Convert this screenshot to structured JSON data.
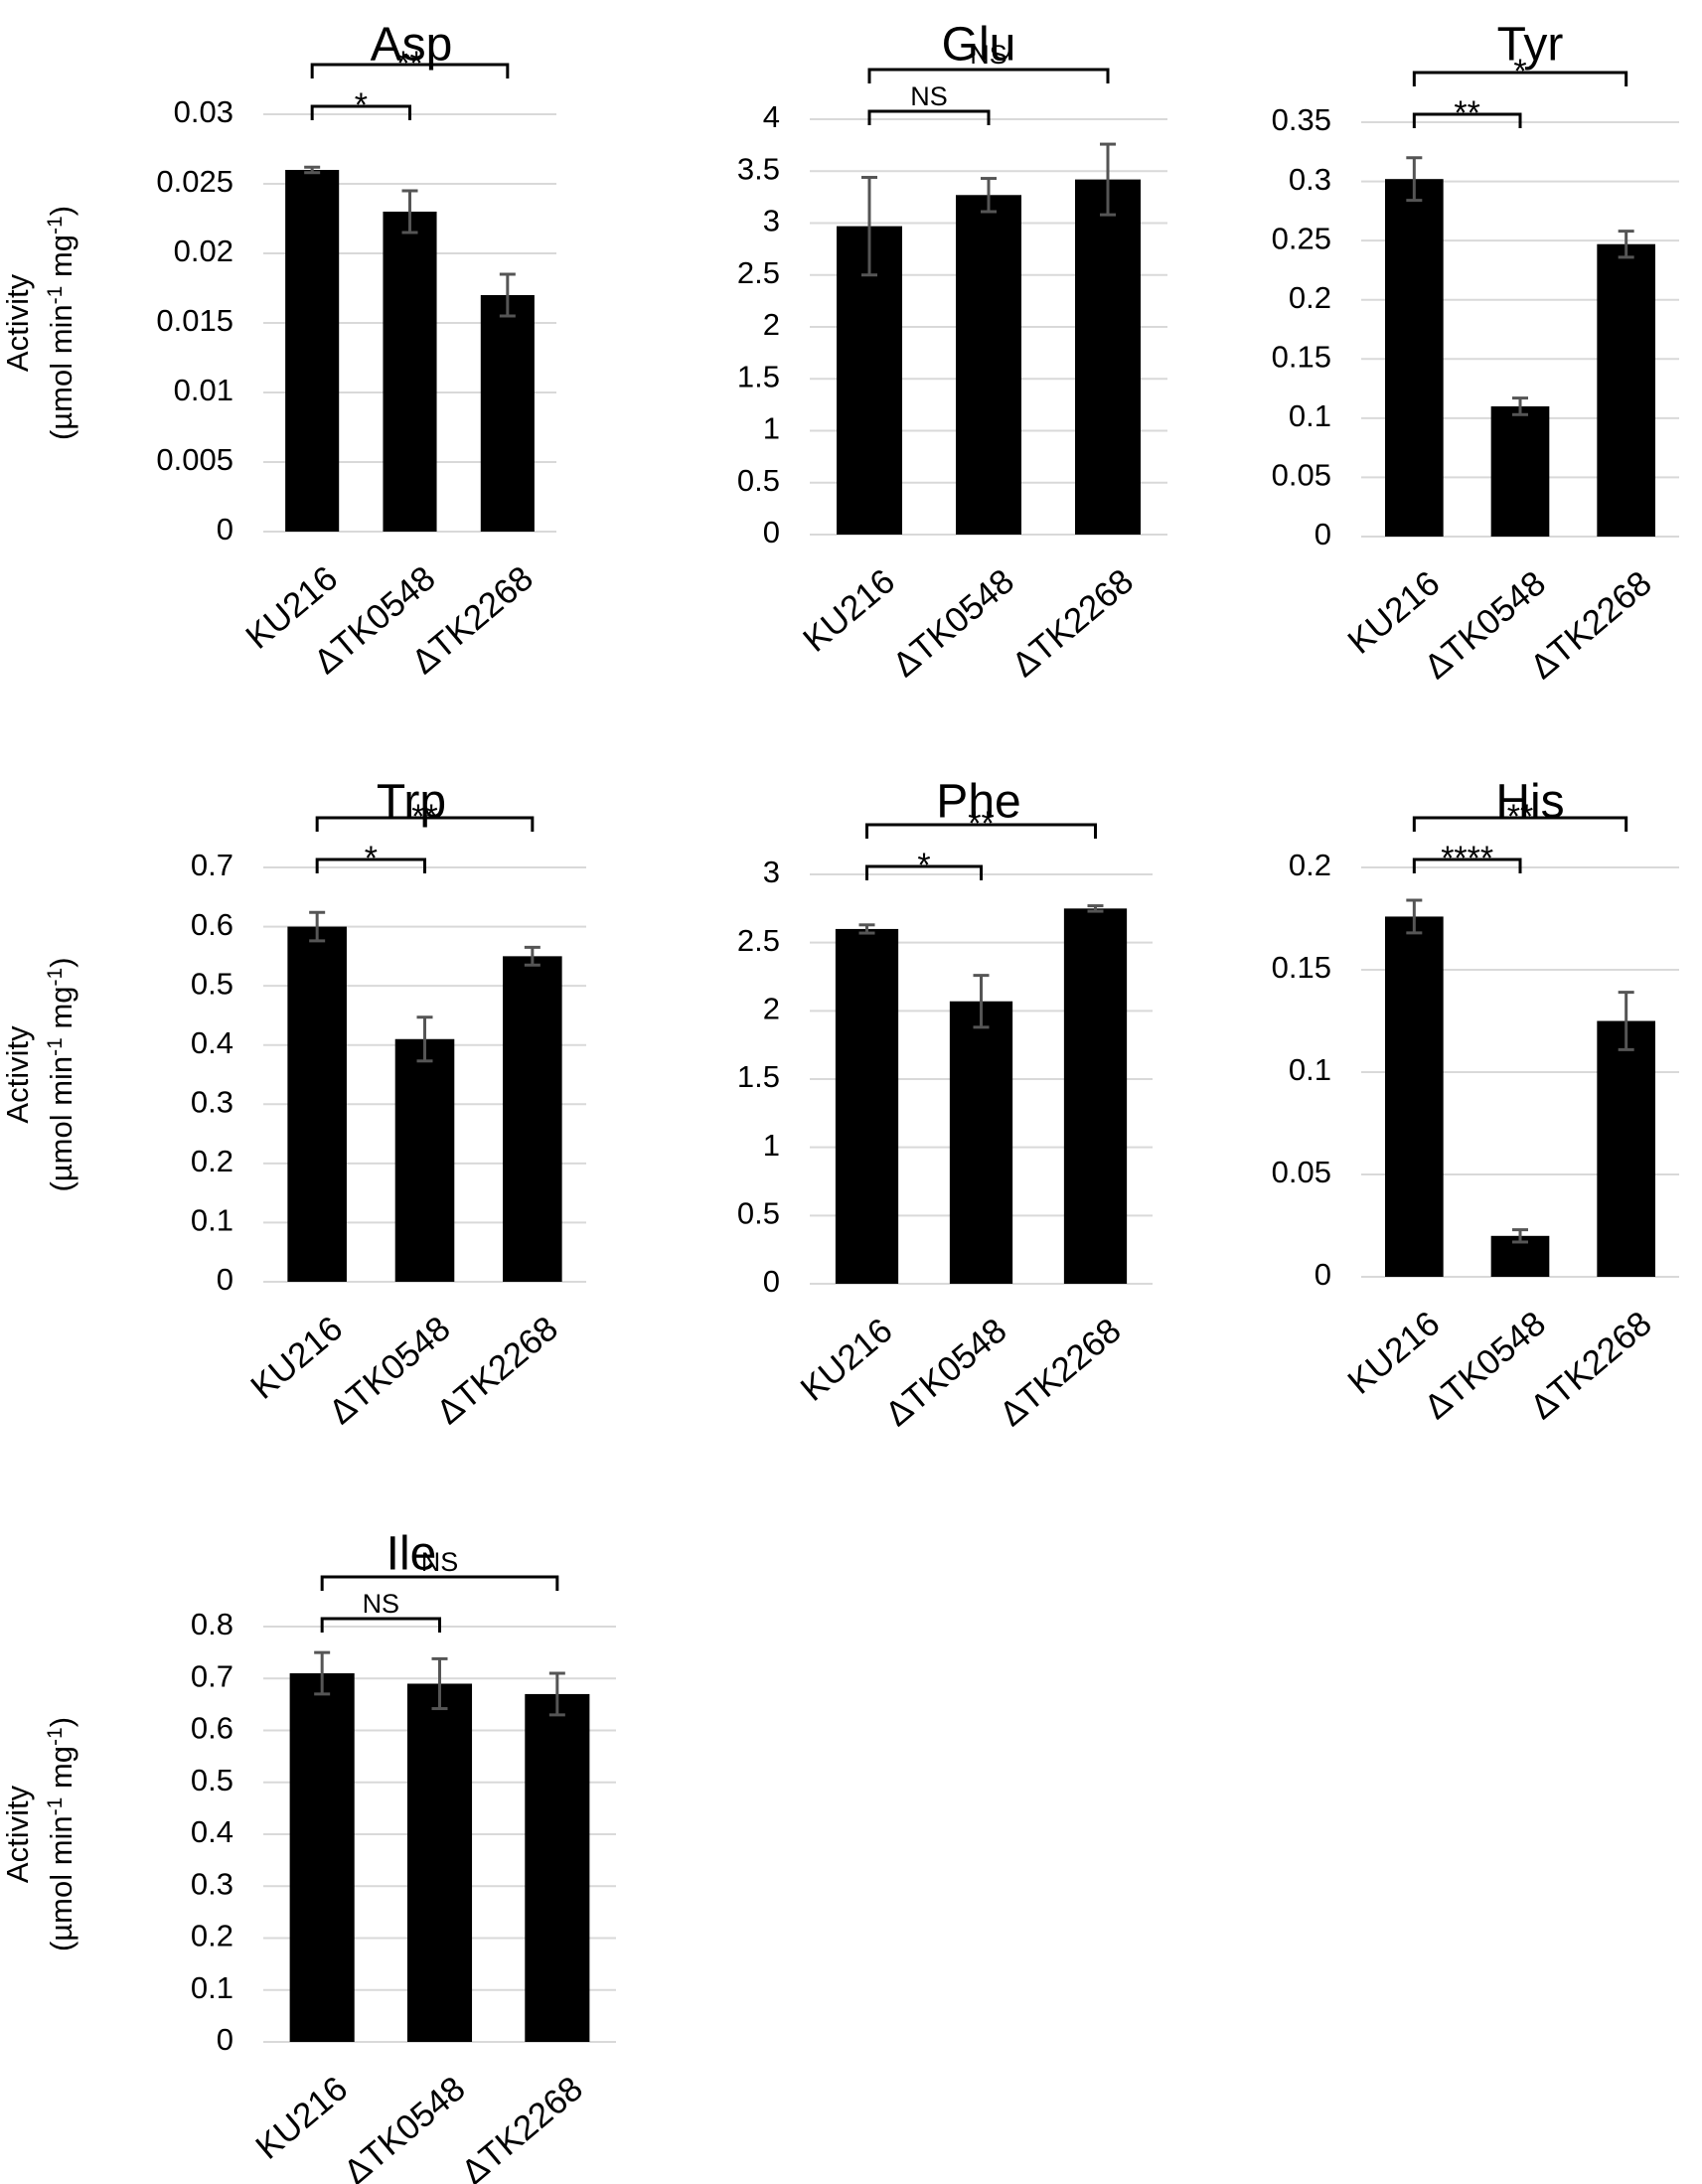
{
  "figure": {
    "ylabel_line1": "Activity",
    "ylabel_line2_prefix": "(µmol min",
    "ylabel_line2_mid": " mg",
    "ylabel_sup": "-1",
    "ylabel_close": ")"
  },
  "colors": {
    "bar": "#000000",
    "error_bar": "#555555",
    "gridline": "#d9d9d9",
    "bracket": "#000000",
    "background": "#ffffff"
  },
  "chart_data": [
    {
      "type": "bar",
      "title": "Asp",
      "categories": [
        "KU216",
        "ΔTK0548",
        "ΔTK2268"
      ],
      "values": [
        0.026,
        0.023,
        0.017
      ],
      "errors": [
        0.0002,
        0.0015,
        0.0015
      ],
      "ylim": [
        0,
        0.03
      ],
      "yticks": [
        "0",
        "0.005",
        "0.01",
        "0.015",
        "0.02",
        "0.025",
        "0.03"
      ],
      "grid": true,
      "significance": [
        {
          "from": "KU216",
          "to": "ΔTK0548",
          "label": "*"
        },
        {
          "from": "KU216",
          "to": "ΔTK2268",
          "label": "**"
        }
      ],
      "xlabel": "",
      "ylabel": "Activity (µmol min-1 mg-1)"
    },
    {
      "type": "bar",
      "title": "Glu",
      "categories": [
        "KU216",
        "ΔTK0548",
        "ΔTK2268"
      ],
      "values": [
        2.97,
        3.27,
        3.42
      ],
      "errors": [
        0.47,
        0.16,
        0.34
      ],
      "ylim": [
        0,
        4
      ],
      "yticks": [
        "0",
        "0.5",
        "1",
        "1.5",
        "2",
        "2.5",
        "3",
        "3.5",
        "4"
      ],
      "grid": true,
      "significance": [
        {
          "from": "KU216",
          "to": "ΔTK0548",
          "label": "NS"
        },
        {
          "from": "KU216",
          "to": "ΔTK2268",
          "label": "NS"
        }
      ],
      "xlabel": "",
      "ylabel": ""
    },
    {
      "type": "bar",
      "title": "Tyr",
      "categories": [
        "KU216",
        "ΔTK0548",
        "ΔTK2268"
      ],
      "values": [
        0.302,
        0.11,
        0.247
      ],
      "errors": [
        0.018,
        0.007,
        0.011
      ],
      "ylim": [
        0,
        0.35
      ],
      "yticks": [
        "0",
        "0.05",
        "0.1",
        "0.15",
        "0.2",
        "0.25",
        "0.3",
        "0.35"
      ],
      "grid": true,
      "significance": [
        {
          "from": "KU216",
          "to": "ΔTK0548",
          "label": "**"
        },
        {
          "from": "KU216",
          "to": "ΔTK2268",
          "label": "*"
        }
      ],
      "xlabel": "",
      "ylabel": ""
    },
    {
      "type": "bar",
      "title": "Trp",
      "categories": [
        "KU216",
        "ΔTK0548",
        "ΔTK2268"
      ],
      "values": [
        0.6,
        0.41,
        0.55
      ],
      "errors": [
        0.024,
        0.037,
        0.015
      ],
      "ylim": [
        0,
        0.7
      ],
      "yticks": [
        "0",
        "0.1",
        "0.2",
        "0.3",
        "0.4",
        "0.5",
        "0.6",
        "0.7"
      ],
      "grid": true,
      "significance": [
        {
          "from": "KU216",
          "to": "ΔTK0548",
          "label": "*"
        },
        {
          "from": "KU216",
          "to": "ΔTK2268",
          "label": "**"
        }
      ],
      "xlabel": "",
      "ylabel": "Activity (µmol min-1 mg-1)"
    },
    {
      "type": "bar",
      "title": "Phe",
      "categories": [
        "KU216",
        "ΔTK0548",
        "ΔTK2268"
      ],
      "values": [
        2.6,
        2.07,
        2.75
      ],
      "errors": [
        0.03,
        0.19,
        0.02
      ],
      "ylim": [
        0,
        3
      ],
      "yticks": [
        "0",
        "0.5",
        "1",
        "1.5",
        "2",
        "2.5",
        "3"
      ],
      "grid": true,
      "significance": [
        {
          "from": "KU216",
          "to": "ΔTK0548",
          "label": "*"
        },
        {
          "from": "KU216",
          "to": "ΔTK2268",
          "label": "**"
        }
      ],
      "xlabel": "",
      "ylabel": ""
    },
    {
      "type": "bar",
      "title": "His",
      "categories": [
        "KU216",
        "ΔTK0548",
        "ΔTK2268"
      ],
      "values": [
        0.176,
        0.02,
        0.125
      ],
      "errors": [
        0.008,
        0.003,
        0.014
      ],
      "ylim": [
        0,
        0.2
      ],
      "yticks": [
        "0",
        "0.05",
        "0.1",
        "0.15",
        "0.2"
      ],
      "grid": true,
      "significance": [
        {
          "from": "KU216",
          "to": "ΔTK0548",
          "label": "****"
        },
        {
          "from": "KU216",
          "to": "ΔTK2268",
          "label": "**"
        }
      ],
      "xlabel": "",
      "ylabel": ""
    },
    {
      "type": "bar",
      "title": "Ile",
      "categories": [
        "KU216",
        "ΔTK0548",
        "ΔTK2268"
      ],
      "values": [
        0.71,
        0.69,
        0.67
      ],
      "errors": [
        0.04,
        0.048,
        0.04
      ],
      "ylim": [
        0,
        0.8
      ],
      "yticks": [
        "0",
        "0.1",
        "0.2",
        "0.3",
        "0.4",
        "0.5",
        "0.6",
        "0.7",
        "0.8"
      ],
      "grid": true,
      "significance": [
        {
          "from": "KU216",
          "to": "ΔTK0548",
          "label": "NS"
        },
        {
          "from": "KU216",
          "to": "ΔTK2268",
          "label": "NS"
        }
      ],
      "xlabel": "",
      "ylabel": "Activity (µmol min-1 mg-1)"
    }
  ]
}
